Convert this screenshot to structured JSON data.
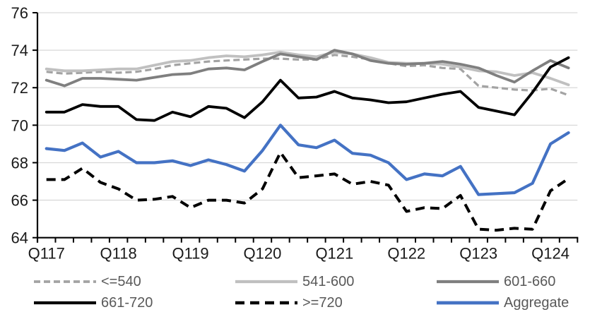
{
  "chart_data": {
    "type": "line",
    "title": "",
    "xlabel": "",
    "ylabel": "",
    "ylim": [
      64,
      76
    ],
    "yticks": [
      64,
      66,
      68,
      70,
      72,
      74,
      76
    ],
    "grid": "horizontal",
    "legend_position": "bottom",
    "n_points": 30,
    "x_tick_labels": [
      "Q117",
      "Q118",
      "Q119",
      "Q120",
      "Q121",
      "Q122",
      "Q123",
      "Q124"
    ],
    "x_label_every": 4,
    "colors": {
      "gridline": "#d9d9d9",
      "axis": "#000000",
      "tick_label": "#1a1a1a",
      "legend_text": "#595959",
      "accent_blue": "#4472c4",
      "gray_light": "#c0c0c0",
      "gray_mid": "#a3a3a3",
      "gray_dark": "#7f7f7f",
      "black": "#000000"
    },
    "series": [
      {
        "name": "<=540",
        "color": "#a3a3a3",
        "dash": "9 5",
        "width": 3.2,
        "values": [
          72.85,
          72.75,
          72.8,
          72.85,
          72.8,
          72.85,
          73.0,
          73.2,
          73.3,
          73.4,
          73.45,
          73.5,
          73.55,
          73.55,
          73.5,
          73.5,
          73.75,
          73.65,
          73.5,
          73.3,
          73.15,
          73.2,
          73.05,
          73.0,
          72.1,
          72.0,
          71.9,
          71.85,
          71.95,
          71.6
        ]
      },
      {
        "name": "541-600",
        "color": "#c0c0c0",
        "dash": null,
        "width": 3.8,
        "values": [
          73.0,
          72.9,
          72.9,
          72.95,
          73.0,
          73.0,
          73.2,
          73.4,
          73.45,
          73.6,
          73.7,
          73.65,
          73.75,
          73.9,
          73.75,
          73.65,
          73.9,
          73.8,
          73.6,
          73.35,
          73.3,
          73.3,
          73.25,
          73.1,
          72.9,
          72.85,
          72.65,
          72.8,
          72.5,
          72.15
        ]
      },
      {
        "name": "601-660",
        "color": "#7f7f7f",
        "dash": null,
        "width": 3.8,
        "values": [
          72.4,
          72.1,
          72.5,
          72.5,
          72.45,
          72.4,
          72.55,
          72.7,
          72.75,
          73.0,
          73.05,
          72.95,
          73.4,
          73.8,
          73.65,
          73.5,
          74.0,
          73.8,
          73.45,
          73.3,
          73.25,
          73.3,
          73.4,
          73.25,
          73.05,
          72.65,
          72.3,
          72.9,
          73.45,
          73.05
        ]
      },
      {
        "name": "661-720",
        "color": "#000000",
        "dash": null,
        "width": 3.8,
        "values": [
          70.7,
          70.7,
          71.1,
          71.0,
          71.0,
          70.3,
          70.25,
          70.7,
          70.45,
          71.0,
          70.9,
          70.4,
          71.25,
          72.4,
          71.45,
          71.5,
          71.8,
          71.45,
          71.35,
          71.2,
          71.25,
          71.45,
          71.65,
          71.8,
          70.95,
          70.75,
          70.55,
          71.75,
          73.1,
          73.6
        ]
      },
      {
        "name": ">=720",
        "color": "#000000",
        "dash": "13 8",
        "width": 4,
        "values": [
          67.1,
          67.1,
          67.7,
          66.95,
          66.6,
          66.0,
          66.05,
          66.2,
          65.6,
          66.0,
          66.0,
          65.85,
          66.6,
          68.55,
          67.2,
          67.3,
          67.4,
          66.85,
          67.0,
          66.8,
          65.4,
          65.6,
          65.55,
          66.25,
          64.45,
          64.4,
          64.5,
          64.45,
          66.5,
          67.15
        ]
      },
      {
        "name": "Aggregate",
        "color": "#4472c4",
        "dash": null,
        "width": 4.2,
        "values": [
          68.75,
          68.65,
          69.05,
          68.3,
          68.6,
          68.0,
          68.0,
          68.1,
          67.85,
          68.15,
          67.9,
          67.55,
          68.65,
          70.0,
          68.95,
          68.8,
          69.2,
          68.5,
          68.4,
          68.0,
          67.1,
          67.4,
          67.3,
          67.8,
          66.3,
          66.35,
          66.4,
          66.9,
          69.0,
          69.6
        ]
      }
    ]
  }
}
